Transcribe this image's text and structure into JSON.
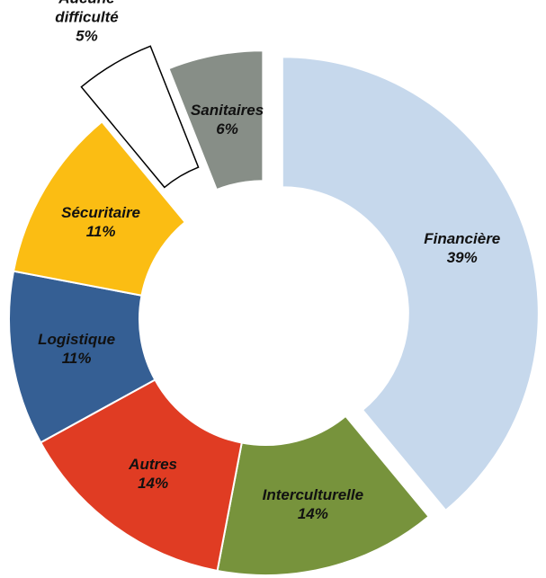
{
  "chart_data": {
    "type": "donut",
    "categories": [
      "Financière",
      "Interculturelle",
      "Autres",
      "Logistique",
      "Sécuritaire",
      "Aucune difficulté",
      "Sanitaires"
    ],
    "values": [
      39,
      14,
      14,
      11,
      11,
      5,
      6
    ],
    "value_labels": [
      "39%",
      "14%",
      "14%",
      "11%",
      "11%",
      "5%",
      "6%"
    ],
    "colors": [
      "#c6d8ec",
      "#77933c",
      "#e03c23",
      "#355f94",
      "#fbbd13",
      "#ffffff",
      "#878e87"
    ]
  }
}
